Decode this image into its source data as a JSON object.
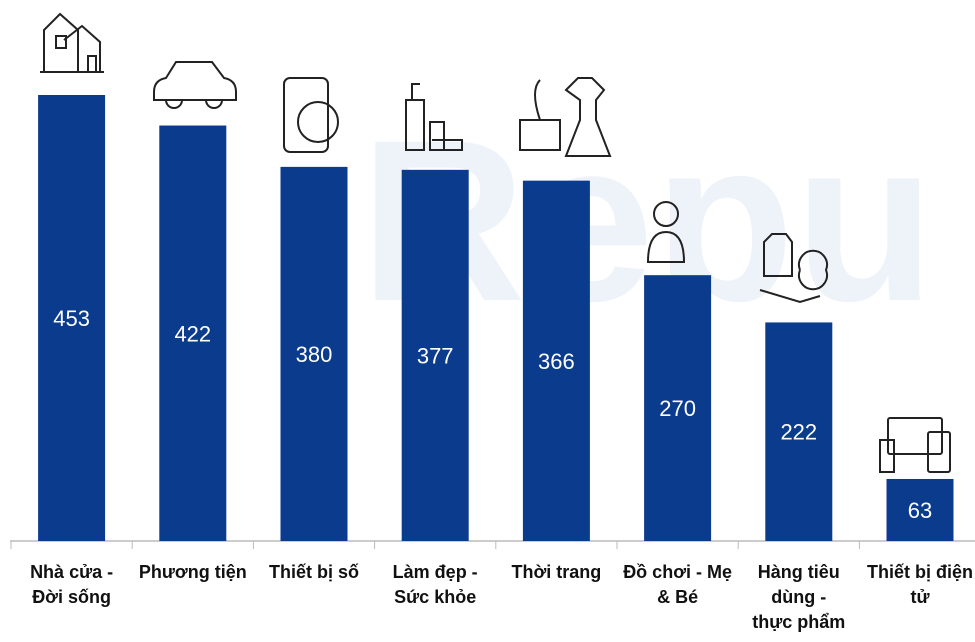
{
  "chart_data": {
    "type": "bar",
    "watermark": "Repu",
    "categories": [
      "Nhà cửa - Đời sống",
      "Phương tiện",
      "Thiết bị số",
      "Làm đẹp - Sức khỏe",
      "Thời trang",
      "Đồ chơi - Mẹ & Bé",
      "Hàng tiêu dùng - thực phẩm",
      "Thiết bị điện tử"
    ],
    "values": [
      453,
      422,
      380,
      377,
      366,
      270,
      222,
      63
    ],
    "color": "#0b3b8c"
  }
}
